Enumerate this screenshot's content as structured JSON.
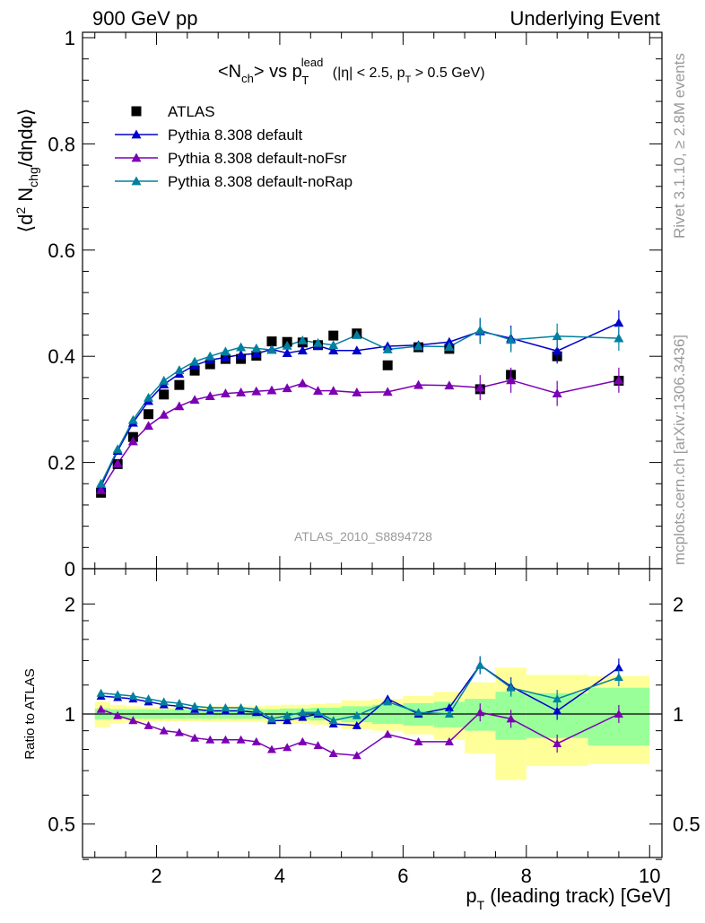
{
  "header": {
    "energy": "900 GeV pp",
    "process": "Underlying Event"
  },
  "side_labels": {
    "rivet": "Rivet 3.1.10, ≥ 2.8M events",
    "mcplots": "mcplots.cern.ch [arXiv:1306.3436]"
  },
  "analysis_id": "ATLAS_2010_S8894728",
  "chart_data": [
    {
      "type": "scatter",
      "panel": "main",
      "title": "<N_ch> vs p_T^lead (|η| < 2.5, p_T > 0.5 GeV)",
      "ylabel": "⟨d² N_chg/dηdφ⟩",
      "ylim": [
        0,
        1.0
      ],
      "yticks": [
        0,
        0.2,
        0.4,
        0.6,
        0.8,
        1
      ],
      "xlim": [
        0.8,
        10.2
      ],
      "legend_position": "top-left",
      "series": [
        {
          "name": "ATLAS",
          "color": "#000000",
          "marker": "square",
          "x": [
            1.1,
            1.37,
            1.62,
            1.87,
            2.12,
            2.37,
            2.62,
            2.87,
            3.12,
            3.37,
            3.62,
            3.87,
            4.12,
            4.37,
            4.62,
            4.87,
            5.25,
            5.75,
            6.25,
            6.75,
            7.25,
            7.75,
            8.5,
            9.5
          ],
          "y": [
            0.143,
            0.197,
            0.248,
            0.291,
            0.328,
            0.346,
            0.373,
            0.385,
            0.395,
            0.395,
            0.401,
            0.428,
            0.427,
            0.426,
            0.421,
            0.439,
            0.443,
            0.383,
            0.417,
            0.414,
            0.338,
            0.365,
            0.4,
            0.354
          ]
        },
        {
          "name": "Pythia 8.308 default",
          "color": "#0000cc",
          "marker": "triangle",
          "x": [
            1.1,
            1.37,
            1.62,
            1.87,
            2.12,
            2.37,
            2.62,
            2.87,
            3.12,
            3.37,
            3.62,
            3.87,
            4.12,
            4.37,
            4.62,
            4.87,
            5.25,
            5.75,
            6.25,
            6.75,
            7.25,
            7.75,
            8.5,
            9.5
          ],
          "y": [
            0.155,
            0.222,
            0.275,
            0.316,
            0.347,
            0.367,
            0.383,
            0.393,
            0.398,
            0.403,
            0.405,
            0.413,
            0.406,
            0.411,
            0.42,
            0.411,
            0.411,
            0.419,
            0.421,
            0.427,
            0.447,
            0.434,
            0.41,
            0.463
          ]
        },
        {
          "name": "Pythia 8.308 default-noFsr",
          "color": "#7b00b4",
          "marker": "triangle",
          "x": [
            1.1,
            1.37,
            1.62,
            1.87,
            2.12,
            2.37,
            2.62,
            2.87,
            3.12,
            3.37,
            3.62,
            3.87,
            4.12,
            4.37,
            4.62,
            4.87,
            5.25,
            5.75,
            6.25,
            6.75,
            7.25,
            7.75,
            8.5,
            9.5
          ],
          "y": [
            0.148,
            0.198,
            0.24,
            0.269,
            0.29,
            0.306,
            0.318,
            0.325,
            0.33,
            0.332,
            0.334,
            0.336,
            0.34,
            0.349,
            0.335,
            0.335,
            0.332,
            0.333,
            0.346,
            0.345,
            0.341,
            0.355,
            0.33,
            0.355
          ]
        },
        {
          "name": "Pythia 8.308 default-noRap",
          "color": "#0080a0",
          "marker": "triangle",
          "x": [
            1.1,
            1.37,
            1.62,
            1.87,
            2.12,
            2.37,
            2.62,
            2.87,
            3.12,
            3.37,
            3.62,
            3.87,
            4.12,
            4.37,
            4.62,
            4.87,
            5.25,
            5.75,
            6.25,
            6.75,
            7.25,
            7.75,
            8.5,
            9.5
          ],
          "y": [
            0.16,
            0.225,
            0.28,
            0.322,
            0.354,
            0.374,
            0.39,
            0.4,
            0.409,
            0.417,
            0.415,
            0.412,
            0.42,
            0.43,
            0.425,
            0.421,
            0.44,
            0.413,
            0.419,
            0.418,
            0.449,
            0.431,
            0.438,
            0.434
          ]
        }
      ]
    },
    {
      "type": "line",
      "panel": "ratio",
      "ylabel": "Ratio to ATLAS",
      "xlabel": "p_T (leading track) [GeV]",
      "ylim": [
        0.4,
        2.4
      ],
      "yscale": "log",
      "yticks": [
        0.5,
        1,
        2
      ],
      "xlim": [
        0.8,
        10.2
      ],
      "xticks": [
        2,
        4,
        6,
        8,
        10
      ],
      "reference_line": 1,
      "bands": {
        "edges": [
          1.0,
          1.25,
          1.5,
          1.75,
          2.0,
          2.25,
          2.5,
          2.75,
          3.0,
          3.25,
          3.5,
          3.75,
          4.0,
          4.25,
          4.5,
          4.75,
          5.0,
          5.5,
          6.0,
          6.5,
          7.0,
          7.5,
          8.0,
          9.0,
          10.0
        ],
        "inner_color": "#99ff99",
        "outer_color": "#ffff99",
        "inner_half_width": [
          0.035,
          0.03,
          0.03,
          0.03,
          0.03,
          0.03,
          0.03,
          0.03,
          0.03,
          0.03,
          0.03,
          0.03,
          0.035,
          0.035,
          0.04,
          0.04,
          0.05,
          0.06,
          0.07,
          0.08,
          0.1,
          0.15,
          0.14,
          0.18
        ],
        "outer_half_width": [
          0.08,
          0.06,
          0.05,
          0.045,
          0.045,
          0.045,
          0.045,
          0.05,
          0.05,
          0.05,
          0.05,
          0.055,
          0.06,
          0.06,
          0.065,
          0.07,
          0.09,
          0.1,
          0.12,
          0.15,
          0.22,
          0.34,
          0.28,
          0.27
        ]
      },
      "series": [
        {
          "name": "Pythia 8.308 default",
          "color": "#0000cc",
          "x": [
            1.1,
            1.37,
            1.62,
            1.87,
            2.12,
            2.37,
            2.62,
            2.87,
            3.12,
            3.37,
            3.62,
            3.87,
            4.12,
            4.37,
            4.62,
            4.87,
            5.25,
            5.75,
            6.25,
            6.75,
            7.25,
            7.75,
            8.5,
            9.5
          ],
          "y": [
            1.12,
            1.11,
            1.1,
            1.08,
            1.06,
            1.05,
            1.03,
            1.02,
            1.02,
            1.02,
            1.01,
            0.96,
            0.96,
            0.98,
            1.0,
            0.94,
            0.93,
            1.1,
            1.0,
            1.04,
            1.36,
            1.19,
            1.02,
            1.34
          ]
        },
        {
          "name": "Pythia 8.308 default-noFsr",
          "color": "#7b00b4",
          "x": [
            1.1,
            1.37,
            1.62,
            1.87,
            2.12,
            2.37,
            2.62,
            2.87,
            3.12,
            3.37,
            3.62,
            3.87,
            4.12,
            4.37,
            4.62,
            4.87,
            5.25,
            5.75,
            6.25,
            6.75,
            7.25,
            7.75,
            8.5,
            9.5
          ],
          "y": [
            1.03,
            0.99,
            0.96,
            0.93,
            0.9,
            0.89,
            0.86,
            0.85,
            0.85,
            0.85,
            0.84,
            0.8,
            0.81,
            0.84,
            0.82,
            0.78,
            0.77,
            0.88,
            0.84,
            0.84,
            1.01,
            0.97,
            0.83,
            1.0
          ]
        },
        {
          "name": "Pythia 8.308 default-noRap",
          "color": "#0080a0",
          "x": [
            1.1,
            1.37,
            1.62,
            1.87,
            2.12,
            2.37,
            2.62,
            2.87,
            3.12,
            3.37,
            3.62,
            3.87,
            4.12,
            4.37,
            4.62,
            4.87,
            5.25,
            5.75,
            6.25,
            6.75,
            7.25,
            7.75,
            8.5,
            9.5
          ],
          "y": [
            1.14,
            1.13,
            1.12,
            1.1,
            1.08,
            1.07,
            1.05,
            1.04,
            1.04,
            1.04,
            1.03,
            0.97,
            0.99,
            1.01,
            1.01,
            0.96,
            0.99,
            1.08,
            1.01,
            1.0,
            1.36,
            1.18,
            1.1,
            1.26
          ]
        }
      ]
    }
  ]
}
